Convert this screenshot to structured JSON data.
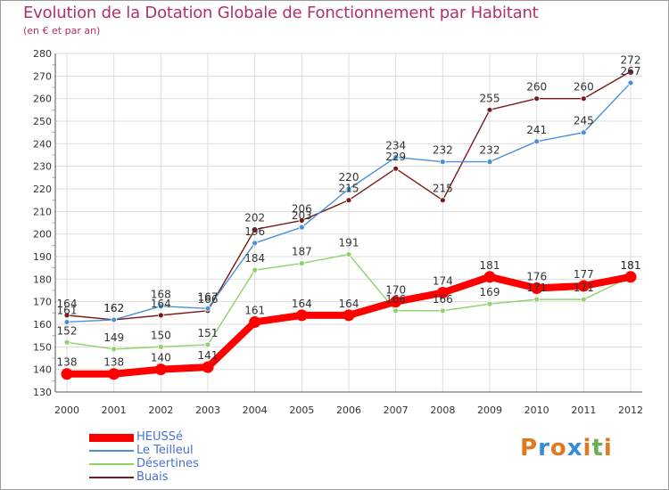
{
  "title": "Evolution de la Dotation Globale de Fonctionnement par Habitant",
  "subtitle": "(en € et par an)",
  "colors": {
    "title": "#b0306a",
    "axis_text": "#333333",
    "grid": "#dddddd",
    "legend_text": "#4a70d0"
  },
  "logo": {
    "text": "Proxiti",
    "colors": [
      "#e07a20",
      "#3a8ad6",
      "#e07a20",
      "#3a8ad6",
      "#e07a20",
      "#6ab04c",
      "#e07a20"
    ]
  },
  "chart_data": {
    "type": "line",
    "title": "Evolution de la Dotation Globale de Fonctionnement par Habitant",
    "subtitle": "(en € et par an)",
    "xlabel": "",
    "ylabel": "",
    "ylim": [
      130,
      280
    ],
    "ytick_step": 10,
    "grid": true,
    "categories": [
      "2000",
      "2001",
      "2002",
      "2003",
      "2004",
      "2005",
      "2006",
      "2007",
      "2008",
      "2009",
      "2010",
      "2011",
      "2012"
    ],
    "series": [
      {
        "name": "HEUSSé",
        "color": "#ff0000",
        "values": [
          138,
          138,
          140,
          141,
          161,
          164,
          164,
          170,
          174,
          181,
          176,
          177,
          181
        ]
      },
      {
        "name": "Le Teilleul",
        "color": "#4a90d9",
        "values": [
          161,
          162,
          168,
          167,
          196,
          203,
          220,
          234,
          232,
          232,
          241,
          245,
          267
        ]
      },
      {
        "name": "Désertines",
        "color": "#8fd16a",
        "values": [
          152,
          149,
          150,
          151,
          184,
          187,
          191,
          166,
          166,
          169,
          171,
          171,
          181
        ]
      },
      {
        "name": "Buais",
        "color": "#7a1a1a",
        "values": [
          164,
          162,
          164,
          166,
          202,
          206,
          215,
          229,
          215,
          255,
          260,
          260,
          272
        ]
      }
    ],
    "legend_position": "bottom-left"
  }
}
